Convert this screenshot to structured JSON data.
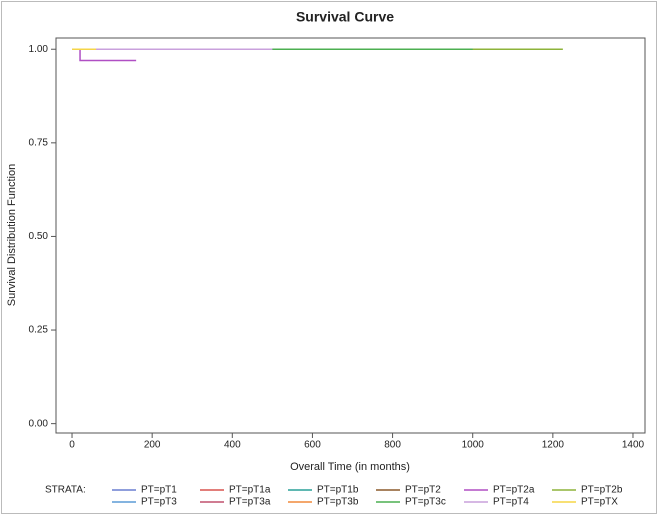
{
  "chart_data": {
    "type": "line",
    "title": "Survival Curve",
    "x_label": "Overall Time (in months)",
    "y_label": "Survival Distribution Function",
    "legend_title": "STRATA:",
    "legend_position": "bottom",
    "xlim": [
      -40,
      1430
    ],
    "xticks": [
      0,
      200,
      400,
      600,
      800,
      1000,
      1200,
      1400
    ],
    "ylim": [
      -0.025,
      1.03
    ],
    "yticks": [
      {
        "value": 0,
        "label": "0.00"
      },
      0.25,
      {
        "value": 0.5,
        "label": "0.50"
      },
      0.75,
      {
        "value": 1,
        "label": "1.00"
      }
    ],
    "series": [
      {
        "name": "PT=pT1",
        "color": "#6a7fd1",
        "x": [
          0,
          1100
        ],
        "values": [
          1,
          1
        ]
      },
      {
        "name": "PT=pT1a",
        "color": "#d9534f",
        "x": [
          0,
          900
        ],
        "values": [
          1,
          1
        ]
      },
      {
        "name": "PT=pT1b",
        "color": "#2aa198",
        "x": [
          0,
          1000
        ],
        "values": [
          1,
          1
        ]
      },
      {
        "name": "PT=pT2",
        "color": "#8b5a2b",
        "x": [
          0,
          1150
        ],
        "values": [
          1,
          1
        ]
      },
      {
        "name": "PT=pT2a",
        "color": "#b04fc4",
        "x": [
          0,
          20,
          20,
          160
        ],
        "values": [
          1,
          1,
          0.97,
          0.97
        ]
      },
      {
        "name": "PT=pT2b",
        "color": "#8db33a",
        "x": [
          0,
          1225
        ],
        "values": [
          1,
          1
        ]
      },
      {
        "name": "PT=pT3",
        "color": "#5b9bd5",
        "x": [
          0,
          800
        ],
        "values": [
          1,
          1
        ]
      },
      {
        "name": "PT=pT3a",
        "color": "#c0506e",
        "x": [
          0,
          700
        ],
        "values": [
          1,
          1
        ]
      },
      {
        "name": "PT=pT3b",
        "color": "#f08a3c",
        "x": [
          0,
          600
        ],
        "values": [
          1,
          1
        ]
      },
      {
        "name": "PT=pT3c",
        "color": "#4caf50",
        "x": [
          0,
          1000
        ],
        "values": [
          1,
          1
        ]
      },
      {
        "name": "PT=pT4",
        "color": "#c9a0dc",
        "x": [
          0,
          500
        ],
        "values": [
          1,
          1
        ]
      },
      {
        "name": "PT=pTX",
        "color": "#f5d547",
        "x": [
          0,
          60
        ],
        "values": [
          1,
          1
        ]
      }
    ]
  }
}
